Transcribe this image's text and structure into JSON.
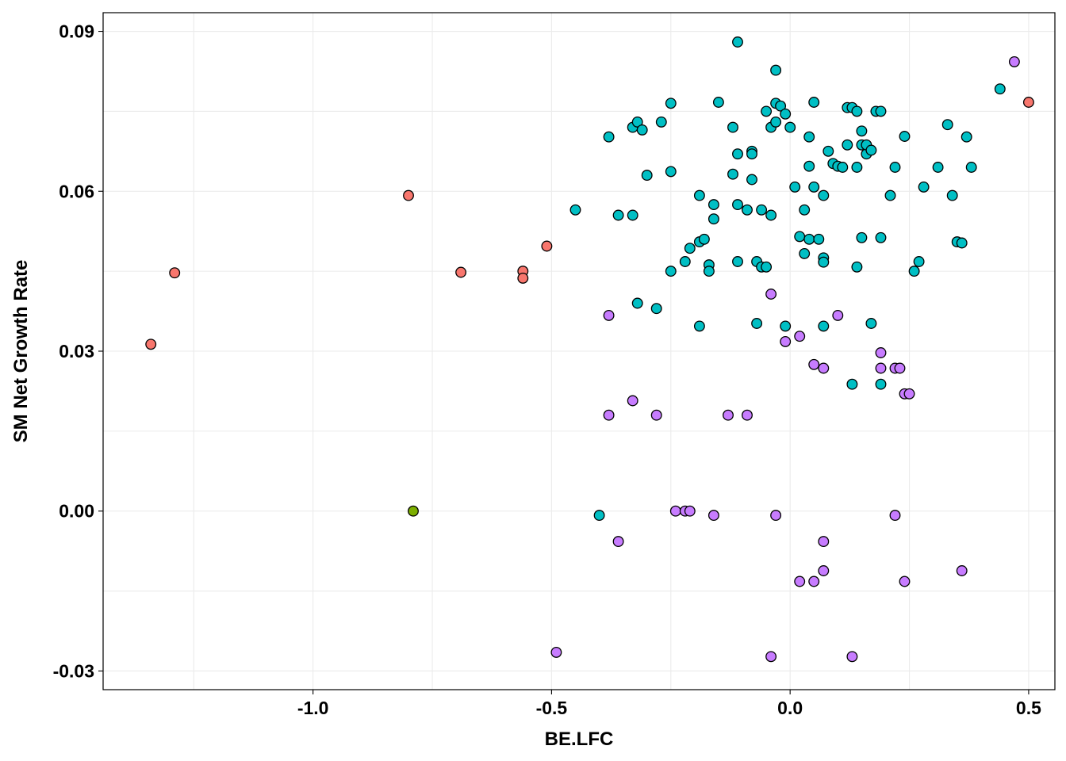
{
  "chart_data": {
    "type": "scatter",
    "title": "",
    "xlabel": "BE.LFC",
    "ylabel": "SM Net Growth Rate",
    "xlim": [
      -1.44,
      0.555
    ],
    "ylim": [
      -0.0335,
      0.0935
    ],
    "x_ticks": [
      -1.0,
      -0.5,
      0.0,
      0.5
    ],
    "x_tick_labels": [
      "-1.0",
      "-0.5",
      "0.0",
      "0.5"
    ],
    "y_ticks": [
      -0.03,
      0.0,
      0.03,
      0.06,
      0.09
    ],
    "y_tick_labels": [
      "-0.03",
      "0.00",
      "0.03",
      "0.06",
      "0.09"
    ],
    "grid": true,
    "legend": "none",
    "colors": {
      "red": "#F8766D",
      "green": "#7CAE00",
      "teal": "#00BFC4",
      "purple": "#C77CFF"
    },
    "series": [
      {
        "color": "#F8766D",
        "points": [
          [
            -1.34,
            0.0313
          ],
          [
            -1.29,
            0.0447
          ],
          [
            -0.8,
            0.0592
          ],
          [
            -0.69,
            0.0448
          ],
          [
            -0.56,
            0.045
          ],
          [
            -0.56,
            0.0437
          ],
          [
            -0.51,
            0.0497
          ],
          [
            0.5,
            0.0767
          ]
        ]
      },
      {
        "color": "#7CAE00",
        "points": [
          [
            -0.79,
            0.0
          ]
        ]
      },
      {
        "color": "#00BFC4",
        "points": [
          [
            -0.45,
            0.0565
          ],
          [
            -0.38,
            0.0702
          ],
          [
            -0.36,
            0.0555
          ],
          [
            -0.33,
            0.0555
          ],
          [
            -0.33,
            0.072
          ],
          [
            -0.32,
            0.073
          ],
          [
            -0.31,
            0.0715
          ],
          [
            -0.3,
            0.063
          ],
          [
            -0.32,
            0.039
          ],
          [
            -0.28,
            0.038
          ],
          [
            -0.27,
            0.073
          ],
          [
            -0.25,
            0.0765
          ],
          [
            -0.25,
            0.0637
          ],
          [
            -0.25,
            0.045
          ],
          [
            -0.22,
            0.0468
          ],
          [
            -0.21,
            0.0493
          ],
          [
            -0.19,
            0.0505
          ],
          [
            -0.19,
            0.0592
          ],
          [
            -0.18,
            0.051
          ],
          [
            -0.17,
            0.0462
          ],
          [
            -0.17,
            0.045
          ],
          [
            -0.16,
            0.0548
          ],
          [
            -0.16,
            0.0575
          ],
          [
            -0.15,
            0.0767
          ],
          [
            -0.19,
            0.0347
          ],
          [
            -0.12,
            0.0632
          ],
          [
            -0.12,
            0.072
          ],
          [
            -0.11,
            0.088
          ],
          [
            -0.11,
            0.067
          ],
          [
            -0.11,
            0.0575
          ],
          [
            -0.11,
            0.0468
          ],
          [
            -0.09,
            0.0565
          ],
          [
            -0.08,
            0.0675
          ],
          [
            -0.08,
            0.067
          ],
          [
            -0.08,
            0.0622
          ],
          [
            -0.07,
            0.0468
          ],
          [
            -0.07,
            0.0352
          ],
          [
            -0.06,
            0.0565
          ],
          [
            -0.06,
            0.0458
          ],
          [
            -0.05,
            0.0458
          ],
          [
            -0.05,
            0.075
          ],
          [
            -0.04,
            0.072
          ],
          [
            -0.04,
            0.0555
          ],
          [
            -0.03,
            0.0765
          ],
          [
            -0.03,
            0.073
          ],
          [
            -0.03,
            0.0827
          ],
          [
            -0.02,
            0.076
          ],
          [
            -0.01,
            0.0347
          ],
          [
            -0.01,
            0.0745
          ],
          [
            0.0,
            0.072
          ],
          [
            0.01,
            0.0608
          ],
          [
            0.02,
            0.0515
          ],
          [
            0.03,
            0.0565
          ],
          [
            0.03,
            0.0483
          ],
          [
            0.04,
            0.0702
          ],
          [
            0.04,
            0.0647
          ],
          [
            0.04,
            0.051
          ],
          [
            0.05,
            0.0608
          ],
          [
            0.05,
            0.0767
          ],
          [
            0.06,
            0.051
          ],
          [
            0.07,
            0.0347
          ],
          [
            0.07,
            0.0592
          ],
          [
            0.07,
            0.0475
          ],
          [
            0.07,
            0.0467
          ],
          [
            0.08,
            0.0675
          ],
          [
            0.09,
            0.0652
          ],
          [
            0.1,
            0.0647
          ],
          [
            0.11,
            0.0645
          ],
          [
            0.12,
            0.0687
          ],
          [
            0.12,
            0.0757
          ],
          [
            0.13,
            0.0757
          ],
          [
            0.14,
            0.075
          ],
          [
            0.14,
            0.0645
          ],
          [
            0.14,
            0.0458
          ],
          [
            0.15,
            0.0687
          ],
          [
            0.15,
            0.0513
          ],
          [
            0.15,
            0.0713
          ],
          [
            0.16,
            0.067
          ],
          [
            0.16,
            0.0687
          ],
          [
            0.17,
            0.0677
          ],
          [
            0.17,
            0.0352
          ],
          [
            0.18,
            0.075
          ],
          [
            0.19,
            0.075
          ],
          [
            0.19,
            0.0513
          ],
          [
            0.19,
            0.0238
          ],
          [
            0.21,
            0.0592
          ],
          [
            0.22,
            0.0645
          ],
          [
            0.24,
            0.0703
          ],
          [
            0.26,
            0.045
          ],
          [
            0.27,
            0.0468
          ],
          [
            0.28,
            0.0608
          ],
          [
            0.31,
            0.0645
          ],
          [
            0.33,
            0.0725
          ],
          [
            0.34,
            0.0592
          ],
          [
            0.35,
            0.0505
          ],
          [
            0.36,
            0.0503
          ],
          [
            0.37,
            0.0702
          ],
          [
            0.38,
            0.0645
          ],
          [
            0.44,
            0.0792
          ],
          [
            0.13,
            0.0238
          ],
          [
            -0.4,
            -0.0008
          ]
        ]
      },
      {
        "color": "#C77CFF",
        "points": [
          [
            -0.49,
            -0.0265
          ],
          [
            -0.38,
            0.0367
          ],
          [
            -0.38,
            0.018
          ],
          [
            -0.36,
            -0.0057
          ],
          [
            -0.33,
            0.0207
          ],
          [
            -0.28,
            0.018
          ],
          [
            -0.24,
            0.0
          ],
          [
            -0.22,
            0.0
          ],
          [
            -0.21,
            0.0
          ],
          [
            -0.16,
            -0.0008
          ],
          [
            -0.13,
            0.018
          ],
          [
            -0.09,
            0.018
          ],
          [
            -0.04,
            0.0407
          ],
          [
            -0.04,
            -0.0273
          ],
          [
            -0.03,
            -0.0008
          ],
          [
            -0.01,
            0.0318
          ],
          [
            0.02,
            0.0328
          ],
          [
            0.02,
            -0.0132
          ],
          [
            0.05,
            0.0275
          ],
          [
            0.05,
            -0.0132
          ],
          [
            0.07,
            0.0268
          ],
          [
            0.07,
            -0.0057
          ],
          [
            0.07,
            -0.0112
          ],
          [
            0.1,
            0.0367
          ],
          [
            0.13,
            -0.0273
          ],
          [
            0.19,
            0.0297
          ],
          [
            0.19,
            0.0268
          ],
          [
            0.22,
            0.0268
          ],
          [
            0.22,
            -0.0008
          ],
          [
            0.23,
            0.0268
          ],
          [
            0.24,
            0.022
          ],
          [
            0.24,
            -0.0132
          ],
          [
            0.25,
            0.022
          ],
          [
            0.36,
            -0.0112
          ],
          [
            0.47,
            0.0843
          ]
        ]
      }
    ]
  }
}
